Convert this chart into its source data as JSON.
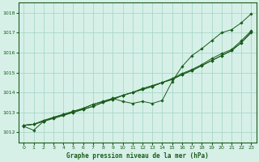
{
  "title": "Graphe pression niveau de la mer (hPa)",
  "bg_color": "#d6f0e8",
  "grid_color": "#a8d8c8",
  "line_color": "#1a5c1a",
  "marker_color": "#1a5c1a",
  "xlim": [
    -0.5,
    23.5
  ],
  "ylim": [
    1011.5,
    1018.5
  ],
  "yticks": [
    1012,
    1013,
    1014,
    1015,
    1016,
    1017,
    1018
  ],
  "xticks": [
    0,
    1,
    2,
    3,
    4,
    5,
    6,
    7,
    8,
    9,
    10,
    11,
    12,
    13,
    14,
    15,
    16,
    17,
    18,
    19,
    20,
    21,
    22,
    23
  ],
  "series": [
    [
      1012.35,
      1012.4,
      1012.55,
      1012.7,
      1012.85,
      1013.0,
      1013.15,
      1013.3,
      1013.5,
      1013.65,
      1013.85,
      1014.0,
      1014.15,
      1014.3,
      1014.5,
      1014.65,
      1014.9,
      1015.1,
      1015.35,
      1015.6,
      1015.85,
      1016.1,
      1016.5,
      1017.0
    ],
    [
      1012.35,
      1012.4,
      1012.55,
      1012.7,
      1012.85,
      1013.0,
      1013.15,
      1013.3,
      1013.5,
      1013.65,
      1013.85,
      1014.0,
      1014.15,
      1014.3,
      1014.5,
      1014.65,
      1014.9,
      1015.1,
      1015.35,
      1015.6,
      1015.85,
      1016.1,
      1016.5,
      1017.05
    ],
    [
      1012.3,
      1012.1,
      1012.55,
      1012.75,
      1012.9,
      1013.05,
      1013.2,
      1013.4,
      1013.55,
      1013.7,
      1013.55,
      1013.45,
      1013.55,
      1013.45,
      1013.6,
      1014.55,
      1015.3,
      1015.85,
      1016.2,
      1016.6,
      1017.0,
      1017.15,
      1017.5,
      1017.95
    ],
    [
      1012.35,
      1012.4,
      1012.6,
      1012.75,
      1012.9,
      1013.05,
      1013.2,
      1013.4,
      1013.55,
      1013.7,
      1013.85,
      1014.0,
      1014.2,
      1014.35,
      1014.5,
      1014.7,
      1014.95,
      1015.15,
      1015.4,
      1015.7,
      1015.95,
      1016.15,
      1016.6,
      1017.1
    ]
  ]
}
